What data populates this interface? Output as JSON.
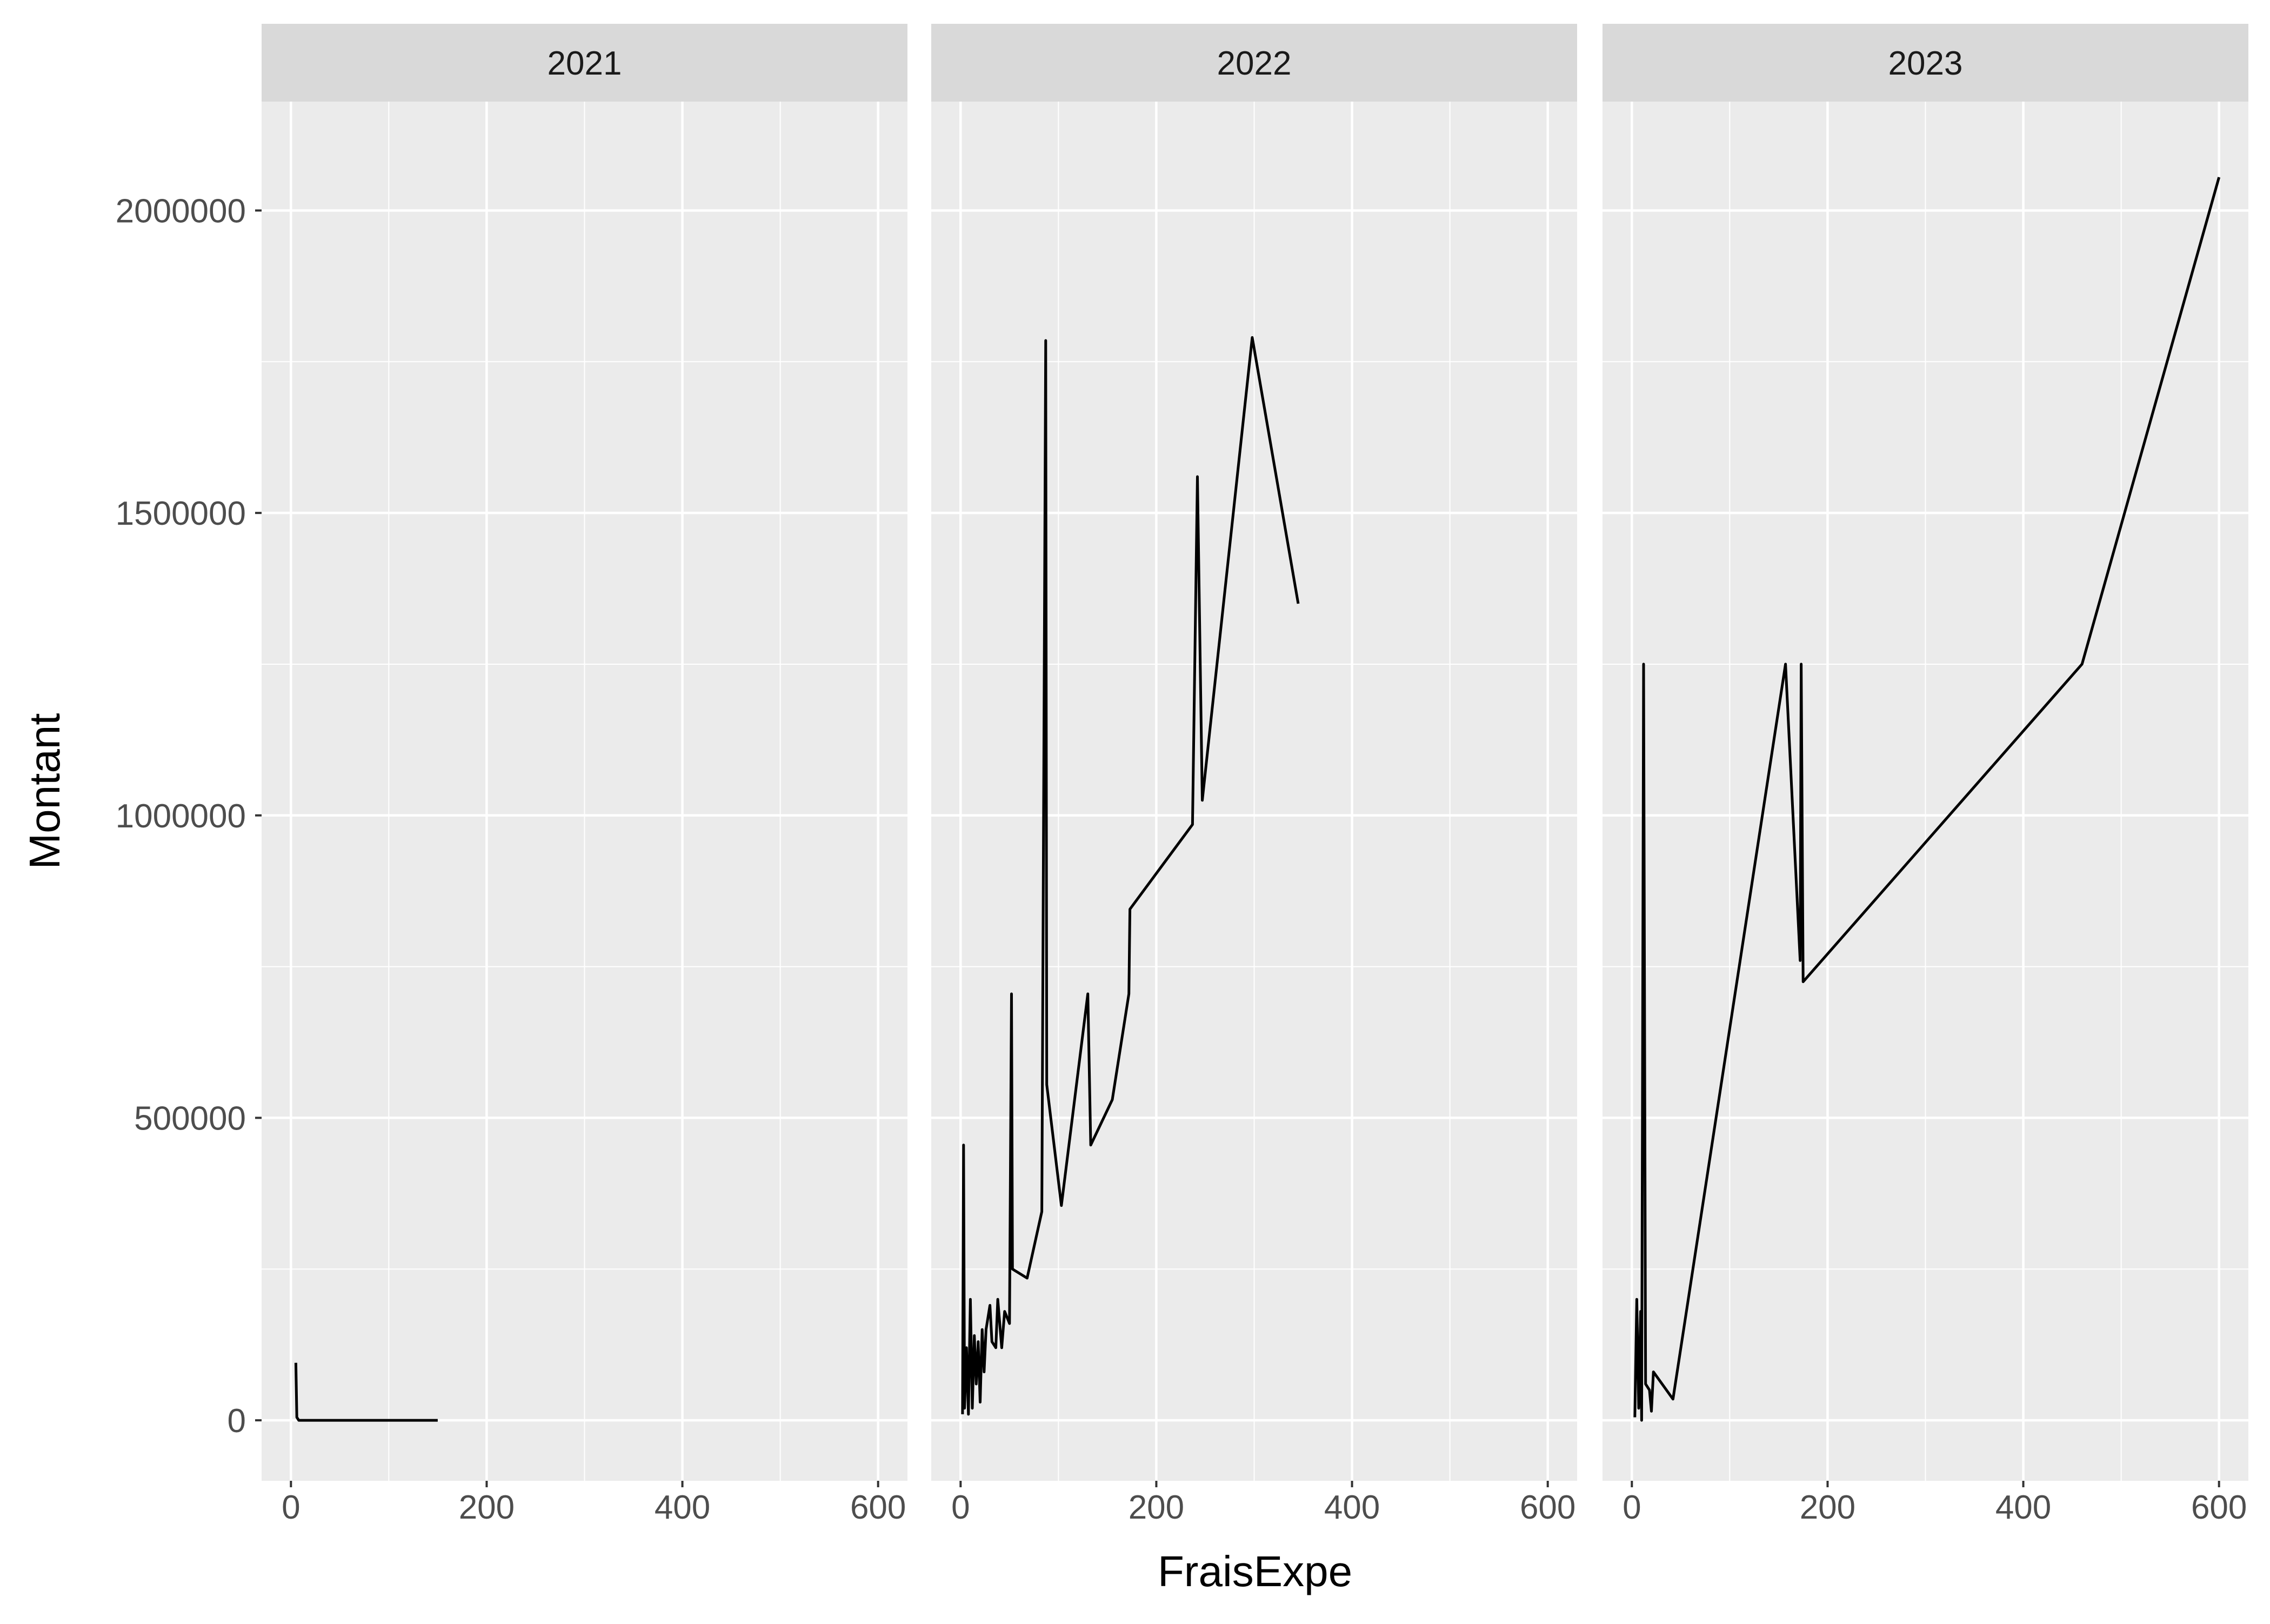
{
  "chart_data": {
    "type": "line",
    "facet_type": "facet_wrap",
    "xlabel": "FraisExpe",
    "ylabel": "Montant",
    "xlim": [
      -30,
      630
    ],
    "ylim": [
      -100000,
      2180000
    ],
    "x_ticks": [
      0,
      200,
      400,
      600
    ],
    "x_tick_labels": [
      "0",
      "200",
      "400",
      "600"
    ],
    "y_ticks": [
      0,
      500000,
      1000000,
      1500000,
      2000000
    ],
    "y_tick_labels": [
      "0",
      "500000",
      "1000000",
      "1500000",
      "2000000"
    ],
    "grid": true,
    "legend": "none",
    "line_color": "#000000",
    "panel_background": "#ebebeb",
    "strip_background": "#d9d9d9",
    "panels": [
      {
        "label": "2021",
        "points": [
          [
            5,
            95000
          ],
          [
            6,
            5000
          ],
          [
            8,
            0
          ],
          [
            10,
            0
          ],
          [
            150,
            0
          ]
        ]
      },
      {
        "label": "2022",
        "points": [
          [
            2,
            10000
          ],
          [
            3,
            455000
          ],
          [
            4,
            20000
          ],
          [
            6,
            120000
          ],
          [
            8,
            10000
          ],
          [
            10,
            200000
          ],
          [
            12,
            20000
          ],
          [
            14,
            140000
          ],
          [
            16,
            60000
          ],
          [
            18,
            130000
          ],
          [
            20,
            30000
          ],
          [
            22,
            150000
          ],
          [
            24,
            80000
          ],
          [
            26,
            150000
          ],
          [
            30,
            190000
          ],
          [
            32,
            130000
          ],
          [
            36,
            120000
          ],
          [
            38,
            200000
          ],
          [
            42,
            120000
          ],
          [
            45,
            180000
          ],
          [
            50,
            160000
          ],
          [
            52,
            705000
          ],
          [
            53,
            250000
          ],
          [
            68,
            235000
          ],
          [
            83,
            345000
          ],
          [
            87,
            1785000
          ],
          [
            88,
            555000
          ],
          [
            103,
            355000
          ],
          [
            130,
            705000
          ],
          [
            133,
            455000
          ],
          [
            155,
            530000
          ],
          [
            172,
            705000
          ],
          [
            173,
            845000
          ],
          [
            237,
            985000
          ],
          [
            242,
            1560000
          ],
          [
            247,
            1025000
          ],
          [
            298,
            1790000
          ],
          [
            345,
            1350000
          ]
        ]
      },
      {
        "label": "2023",
        "points": [
          [
            3,
            5000
          ],
          [
            5,
            200000
          ],
          [
            7,
            20000
          ],
          [
            9,
            180000
          ],
          [
            10,
            0
          ],
          [
            12,
            1250000
          ],
          [
            14,
            60000
          ],
          [
            18,
            50000
          ],
          [
            20,
            15000
          ],
          [
            22,
            80000
          ],
          [
            42,
            35000
          ],
          [
            157,
            1250000
          ],
          [
            172,
            760000
          ],
          [
            173,
            1250000
          ],
          [
            175,
            725000
          ],
          [
            460,
            1250000
          ],
          [
            600,
            2055000
          ]
        ]
      }
    ]
  }
}
